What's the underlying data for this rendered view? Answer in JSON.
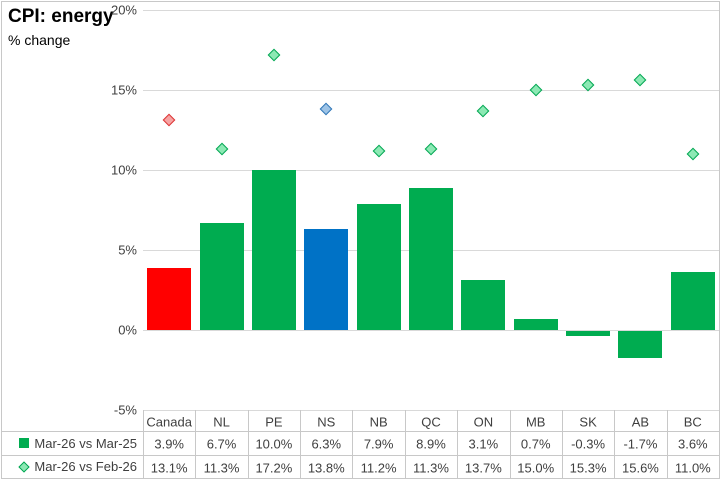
{
  "title": "CPI: energy",
  "subtitle": "% change",
  "chart_data": {
    "type": "bar",
    "categories": [
      "Canada",
      "NL",
      "PE",
      "NS",
      "NB",
      "QC",
      "ON",
      "MB",
      "SK",
      "AB",
      "BC"
    ],
    "series": [
      {
        "name": "Mar-26 vs Mar-25",
        "type": "bar",
        "values": [
          3.9,
          6.7,
          10.0,
          6.3,
          7.9,
          8.9,
          3.1,
          0.7,
          -0.3,
          -1.7,
          3.6
        ],
        "colors": [
          "#ff0000",
          "#00ac50",
          "#00ac50",
          "#0072c6",
          "#00ac50",
          "#00ac50",
          "#00ac50",
          "#00ac50",
          "#00ac50",
          "#00ac50",
          "#00ac50"
        ]
      },
      {
        "name": "Mar-26 vs Feb-26",
        "type": "scatter",
        "marker": "diamond",
        "values": [
          13.1,
          11.3,
          17.2,
          13.8,
          11.2,
          11.3,
          13.7,
          15.0,
          15.3,
          15.6,
          11.0
        ],
        "marker_fill": [
          "#f6a3a3",
          "#8ce9b4",
          "#8ce9b4",
          "#9dc3e6",
          "#8ce9b4",
          "#8ce9b4",
          "#8ce9b4",
          "#8ce9b4",
          "#8ce9b4",
          "#8ce9b4",
          "#8ce9b4"
        ],
        "marker_border": [
          "#dc3232",
          "#00a551",
          "#00a551",
          "#2e75b6",
          "#00a551",
          "#00a551",
          "#00a551",
          "#00a551",
          "#00a551",
          "#00a551",
          "#00a551"
        ]
      }
    ],
    "ylim": [
      -5,
      20
    ],
    "yticks": [
      20,
      15,
      10,
      5,
      0,
      -5
    ],
    "ytick_labels": [
      "20%",
      "15%",
      "10%",
      "5%",
      "0%",
      "-5%"
    ],
    "grid": true,
    "legend_position": "data-table-left"
  },
  "table": {
    "columns": [
      "Canada",
      "NL",
      "PE",
      "NS",
      "NB",
      "QC",
      "ON",
      "MB",
      "SK",
      "AB",
      "BC"
    ],
    "row1_label": "Mar-26 vs Mar-25",
    "row1": [
      "3.9%",
      "6.7%",
      "10.0%",
      "6.3%",
      "7.9%",
      "8.9%",
      "3.1%",
      "0.7%",
      "-0.3%",
      "-1.7%",
      "3.6%"
    ],
    "row2_label": "Mar-26 vs Feb-26",
    "row2": [
      "13.1%",
      "11.3%",
      "17.2%",
      "13.8%",
      "11.2%",
      "11.3%",
      "13.7%",
      "15.0%",
      "15.3%",
      "15.6%",
      "11.0%"
    ]
  },
  "colors": {
    "bar_default": "#00ac50",
    "bar_canada": "#ff0000",
    "bar_ns": "#0072c6",
    "marker_default_fill": "#8ce9b4",
    "marker_default_border": "#00a551",
    "gridline": "#d9d9d9",
    "table_line": "#c8c8c8",
    "axis_text": "#3f3f3f",
    "legend_square": "#00ac50"
  }
}
